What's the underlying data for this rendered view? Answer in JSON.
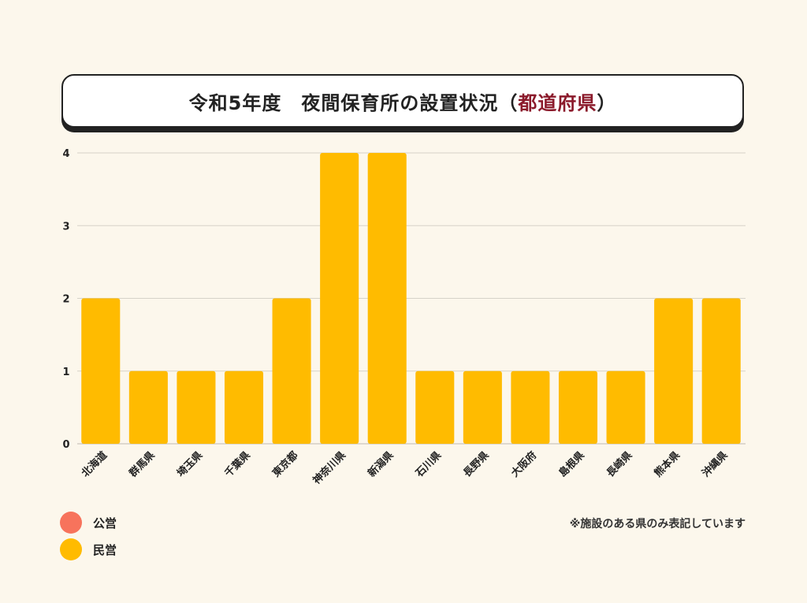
{
  "title": {
    "main": "令和5年度　夜間保育所の設置状況（",
    "accent": "都道府県",
    "close": "）"
  },
  "legend": {
    "items": [
      {
        "label": "公営",
        "color": "#f7735c"
      },
      {
        "label": "民営",
        "color": "#ffbb00"
      }
    ]
  },
  "note": "※施設のある県のみ表記しています",
  "chart_data": {
    "type": "bar",
    "title": "令和5年度　夜間保育所の設置状況（都道府県）",
    "categories": [
      "北海道",
      "群馬県",
      "埼玉県",
      "千葉県",
      "東京都",
      "神奈川県",
      "新潟県",
      "石川県",
      "長野県",
      "大阪府",
      "島根県",
      "長崎県",
      "熊本県",
      "沖縄県"
    ],
    "series": [
      {
        "name": "公営",
        "color": "#f7735c",
        "values": [
          0,
          0,
          0,
          0,
          0,
          0,
          0,
          0,
          0,
          0,
          0,
          0,
          0,
          0
        ]
      },
      {
        "name": "民営",
        "color": "#ffbb00",
        "values": [
          2,
          1,
          1,
          1,
          2,
          4,
          4,
          1,
          1,
          1,
          1,
          1,
          2,
          2
        ]
      }
    ],
    "yticks": [
      0,
      1,
      2,
      3,
      4
    ],
    "ylim": [
      0,
      4
    ],
    "grid": true,
    "legend_position": "bottom-left"
  }
}
